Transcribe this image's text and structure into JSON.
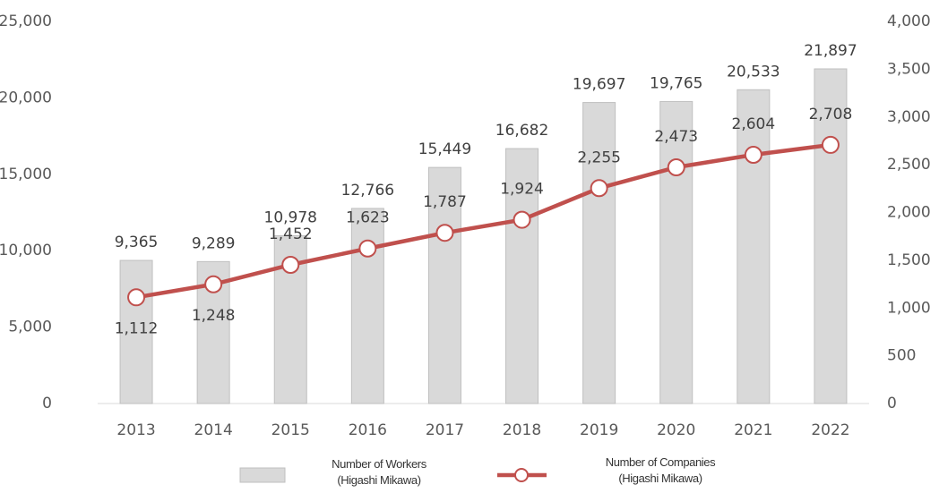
{
  "chart_data": {
    "type": "bar_line",
    "categories": [
      "2013",
      "2014",
      "2015",
      "2016",
      "2017",
      "2018",
      "2019",
      "2020",
      "2021",
      "2022"
    ],
    "series": [
      {
        "name": "Number of Workers (Higashi Mikawa)",
        "type": "bar",
        "color": "#d9d9d9",
        "values": [
          9365,
          9289,
          10978,
          12766,
          15449,
          16682,
          19697,
          19765,
          20533,
          21897
        ],
        "value_labels": [
          "9,365",
          "9,289",
          "10,978",
          "12,766",
          "15,449",
          "16,682",
          "19,697",
          "19,765",
          "20,533",
          "21,897"
        ]
      },
      {
        "name": "Number of Companies (Higashi Mikawa)",
        "type": "line",
        "axis": "y2",
        "color": "#c0504d",
        "values": [
          1112,
          1248,
          1452,
          1623,
          1787,
          1924,
          2255,
          2473,
          2604,
          2708
        ],
        "value_labels": [
          "1,112",
          "1,248",
          "1,452",
          "1,623",
          "1,787",
          "1,924",
          "2,255",
          "2,473",
          "2,604",
          "2,708"
        ]
      }
    ],
    "ylim": [
      0,
      25000
    ],
    "yticks": [
      0,
      {
        "value": 5000,
        "label": "5,000"
      },
      {
        "value": 10000,
        "label": "10,000"
      },
      {
        "value": 15000,
        "label": "15,000"
      },
      {
        "value": 20000,
        "label": "20,000"
      },
      {
        "value": 25000,
        "label": "25,000"
      }
    ],
    "y2lim": [
      0,
      4000
    ],
    "y2ticks": [
      0,
      500,
      {
        "value": 1000,
        "label": "1,000"
      },
      {
        "value": 1500,
        "label": "1,500"
      },
      {
        "value": 2000,
        "label": "2,000"
      },
      {
        "value": 2500,
        "label": "2,500"
      },
      {
        "value": 3000,
        "label": "3,000"
      },
      {
        "value": 3500,
        "label": "3,500"
      },
      {
        "value": 4000,
        "label": "4,000"
      }
    ],
    "grid": false,
    "legend": "bottom"
  }
}
